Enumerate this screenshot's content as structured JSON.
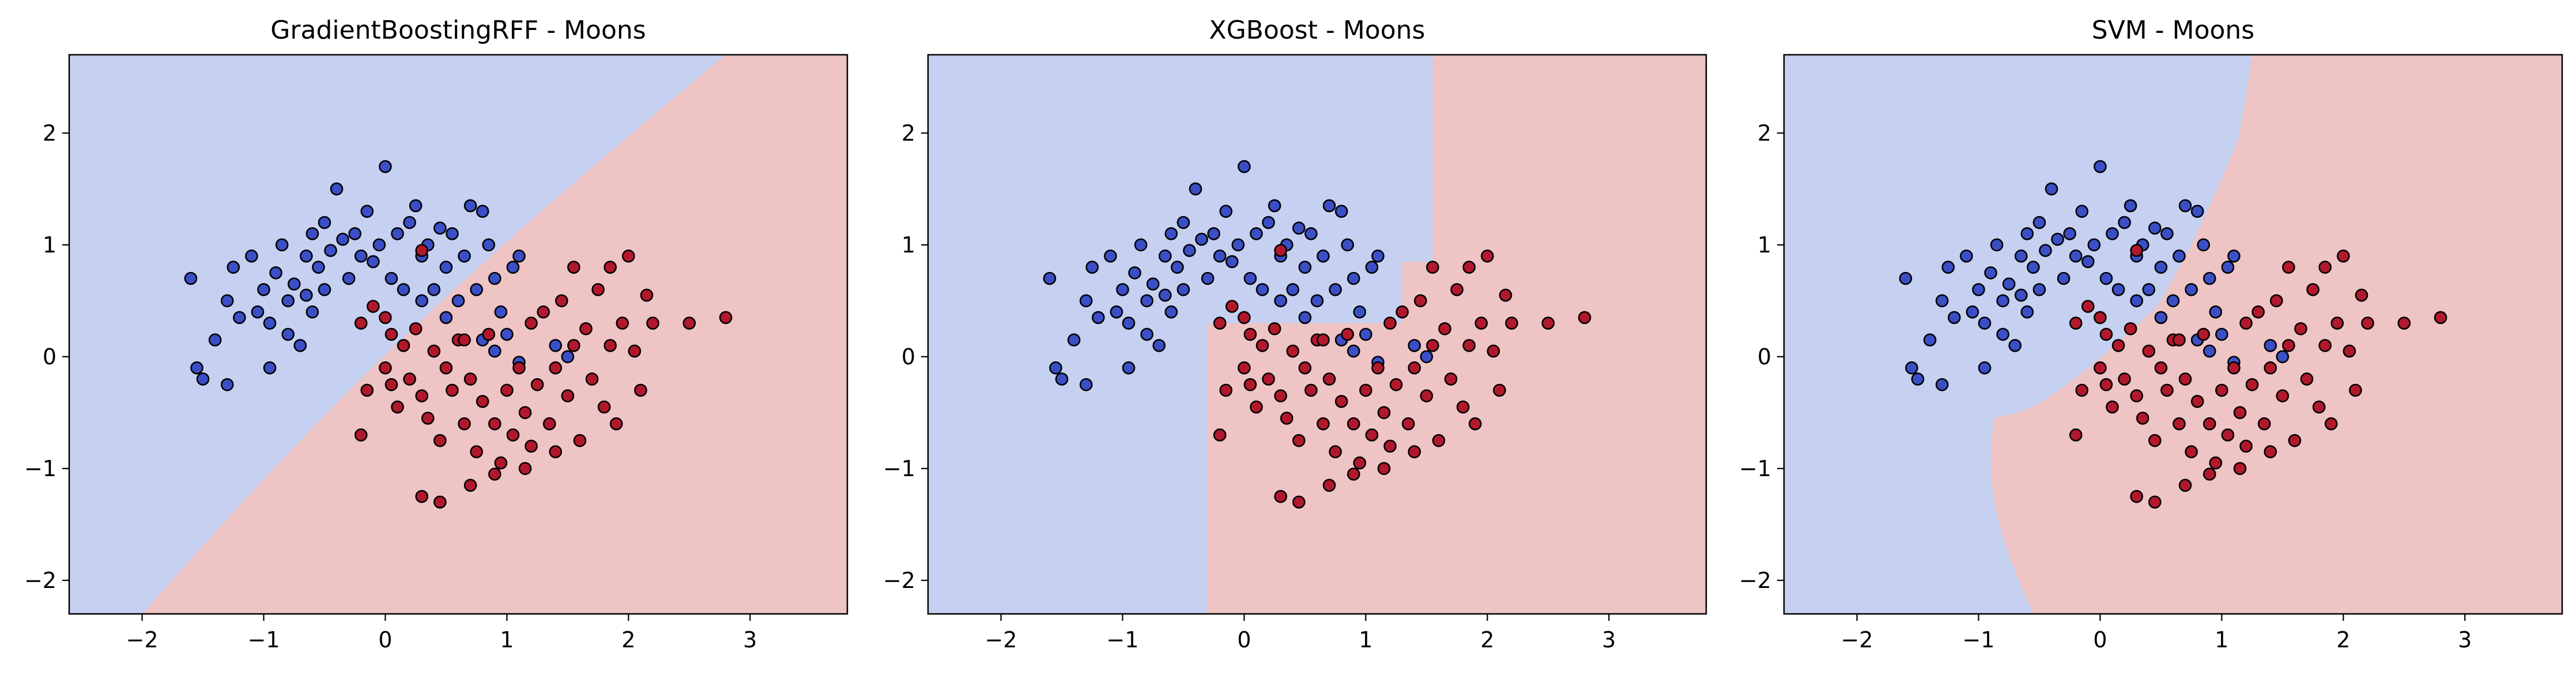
{
  "chart_data": [
    {
      "type": "scatter",
      "title": "GradientBoostingRFF - Moons",
      "xlim": [
        -2.6,
        3.8
      ],
      "ylim": [
        -2.3,
        2.7
      ],
      "xticks": [
        -2,
        -1,
        0,
        1,
        2,
        3
      ],
      "yticks": [
        2,
        1,
        0,
        -1,
        -2
      ],
      "tick_labels_x": [
        "−2",
        "−1",
        "0",
        "1",
        "2",
        "3"
      ],
      "tick_labels_y": [
        "2",
        "1",
        "0",
        "−1",
        "−2"
      ],
      "decision_regions": {
        "class0": "#c6d0f0",
        "class1": "#eec4c4",
        "boundary": "diagonal curve through (-2,-2.3) and (2.8,2.7)"
      },
      "series": [
        {
          "class": 0,
          "color": "#3a4fc6",
          "points": [
            [
              -1.6,
              0.7
            ],
            [
              -1.4,
              0.15
            ],
            [
              -1.55,
              -0.1
            ],
            [
              -1.5,
              -0.2
            ],
            [
              -1.3,
              0.5
            ],
            [
              -1.25,
              0.8
            ],
            [
              -1.1,
              0.9
            ],
            [
              -1.2,
              0.35
            ],
            [
              -1.05,
              0.4
            ],
            [
              -1.0,
              0.6
            ],
            [
              -0.95,
              0.3
            ],
            [
              -0.9,
              0.75
            ],
            [
              -0.85,
              1.0
            ],
            [
              -0.8,
              0.5
            ],
            [
              -0.8,
              0.2
            ],
            [
              -0.75,
              0.65
            ],
            [
              -0.7,
              0.1
            ],
            [
              -0.65,
              0.9
            ],
            [
              -0.6,
              1.1
            ],
            [
              -0.6,
              0.4
            ],
            [
              -0.55,
              0.8
            ],
            [
              -0.5,
              1.2
            ],
            [
              -0.5,
              0.6
            ],
            [
              -0.45,
              0.95
            ],
            [
              -0.4,
              1.5
            ],
            [
              -0.35,
              1.05
            ],
            [
              -0.3,
              0.7
            ],
            [
              -0.25,
              1.1
            ],
            [
              -0.2,
              0.9
            ],
            [
              -0.15,
              1.3
            ],
            [
              -0.1,
              0.85
            ],
            [
              -0.05,
              1.0
            ],
            [
              0.0,
              1.7
            ],
            [
              0.05,
              0.7
            ],
            [
              0.1,
              1.1
            ],
            [
              0.15,
              0.6
            ],
            [
              0.2,
              1.2
            ],
            [
              0.25,
              1.35
            ],
            [
              0.3,
              0.9
            ],
            [
              0.35,
              1.0
            ],
            [
              0.4,
              0.6
            ],
            [
              0.45,
              1.15
            ],
            [
              0.5,
              0.8
            ],
            [
              0.55,
              1.1
            ],
            [
              0.6,
              0.5
            ],
            [
              0.65,
              0.9
            ],
            [
              0.7,
              1.35
            ],
            [
              0.75,
              0.6
            ],
            [
              0.8,
              1.3
            ],
            [
              0.85,
              1.0
            ],
            [
              0.9,
              0.7
            ],
            [
              0.95,
              0.4
            ],
            [
              1.0,
              0.2
            ],
            [
              1.05,
              0.8
            ],
            [
              1.1,
              0.9
            ],
            [
              0.8,
              0.15
            ],
            [
              0.5,
              0.35
            ],
            [
              0.3,
              0.5
            ],
            [
              -1.3,
              -0.25
            ],
            [
              -0.95,
              -0.1
            ],
            [
              -0.65,
              0.55
            ],
            [
              0.9,
              0.05
            ],
            [
              1.1,
              -0.05
            ],
            [
              1.4,
              0.1
            ],
            [
              1.5,
              0.0
            ]
          ]
        },
        {
          "class": 1,
          "color": "#b2182b",
          "points": [
            [
              -0.2,
              0.3
            ],
            [
              -0.1,
              0.45
            ],
            [
              0.0,
              0.35
            ],
            [
              0.05,
              0.2
            ],
            [
              0.0,
              -0.1
            ],
            [
              -0.15,
              -0.3
            ],
            [
              -0.2,
              -0.7
            ],
            [
              0.05,
              -0.25
            ],
            [
              0.1,
              -0.45
            ],
            [
              0.15,
              0.1
            ],
            [
              0.2,
              -0.2
            ],
            [
              0.25,
              0.25
            ],
            [
              0.3,
              -0.35
            ],
            [
              0.35,
              -0.55
            ],
            [
              0.4,
              0.05
            ],
            [
              0.45,
              -0.75
            ],
            [
              0.5,
              -0.1
            ],
            [
              0.55,
              -0.3
            ],
            [
              0.6,
              0.15
            ],
            [
              0.65,
              -0.6
            ],
            [
              0.7,
              -0.2
            ],
            [
              0.75,
              -0.85
            ],
            [
              0.8,
              -0.4
            ],
            [
              0.85,
              0.2
            ],
            [
              0.9,
              -0.6
            ],
            [
              0.95,
              -0.95
            ],
            [
              1.0,
              -0.3
            ],
            [
              1.05,
              -0.7
            ],
            [
              1.1,
              -0.1
            ],
            [
              1.15,
              -0.5
            ],
            [
              1.2,
              -0.8
            ],
            [
              1.25,
              -0.25
            ],
            [
              1.3,
              0.4
            ],
            [
              1.35,
              -0.6
            ],
            [
              1.4,
              -0.1
            ],
            [
              1.45,
              0.5
            ],
            [
              1.5,
              -0.35
            ],
            [
              1.55,
              0.1
            ],
            [
              1.6,
              -0.75
            ],
            [
              1.65,
              0.25
            ],
            [
              1.7,
              -0.2
            ],
            [
              1.75,
              0.6
            ],
            [
              1.8,
              -0.45
            ],
            [
              1.85,
              0.1
            ],
            [
              1.9,
              -0.6
            ],
            [
              1.95,
              0.3
            ],
            [
              2.0,
              0.9
            ],
            [
              2.05,
              0.05
            ],
            [
              2.1,
              -0.3
            ],
            [
              2.15,
              0.55
            ],
            [
              2.2,
              0.3
            ],
            [
              2.5,
              0.3
            ],
            [
              2.8,
              0.35
            ],
            [
              0.3,
              -1.25
            ],
            [
              0.45,
              -1.3
            ],
            [
              0.7,
              -1.15
            ],
            [
              0.9,
              -1.05
            ],
            [
              1.15,
              -1.0
            ],
            [
              1.4,
              -0.85
            ],
            [
              1.55,
              0.8
            ],
            [
              1.85,
              0.8
            ],
            [
              0.3,
              0.95
            ],
            [
              0.65,
              0.15
            ],
            [
              1.2,
              0.3
            ]
          ]
        }
      ]
    },
    {
      "type": "scatter",
      "title": "XGBoost - Moons",
      "xlim": [
        -2.6,
        3.8
      ],
      "ylim": [
        -2.3,
        2.7
      ],
      "xticks": [
        -2,
        -1,
        0,
        1,
        2,
        3
      ],
      "yticks": [
        2,
        1,
        0,
        -1,
        -2
      ],
      "tick_labels_x": [
        "−2",
        "−1",
        "0",
        "1",
        "2",
        "3"
      ],
      "tick_labels_y": [
        "2",
        "1",
        "0",
        "−1",
        "−2"
      ],
      "decision_regions": {
        "class0": "#c6d0f0",
        "class1": "#eec4c4",
        "boundary": "axis-aligned steps at x=-0.3, x=1.3, x=1.55"
      },
      "series": [
        {
          "class": 0,
          "color": "#3a4fc6",
          "same_as_panel": 0
        },
        {
          "class": 1,
          "color": "#b2182b",
          "same_as_panel": 0
        }
      ]
    },
    {
      "type": "scatter",
      "title": "SVM - Moons",
      "xlim": [
        -2.6,
        3.8
      ],
      "ylim": [
        -2.3,
        2.7
      ],
      "xticks": [
        -2,
        -1,
        0,
        1,
        2,
        3
      ],
      "yticks": [
        2,
        1,
        0,
        -1,
        -2
      ],
      "tick_labels_x": [
        "−2",
        "−1",
        "0",
        "1",
        "2",
        "3"
      ],
      "tick_labels_y": [
        "2",
        "1",
        "0",
        "−1",
        "−2"
      ],
      "decision_regions": {
        "class0": "#c6d0f0",
        "class1": "#eec4c4",
        "boundary": "smooth S-shaped curve"
      },
      "series": [
        {
          "class": 0,
          "color": "#3a4fc6",
          "same_as_panel": 0
        },
        {
          "class": 1,
          "color": "#b2182b",
          "same_as_panel": 0
        }
      ]
    }
  ]
}
